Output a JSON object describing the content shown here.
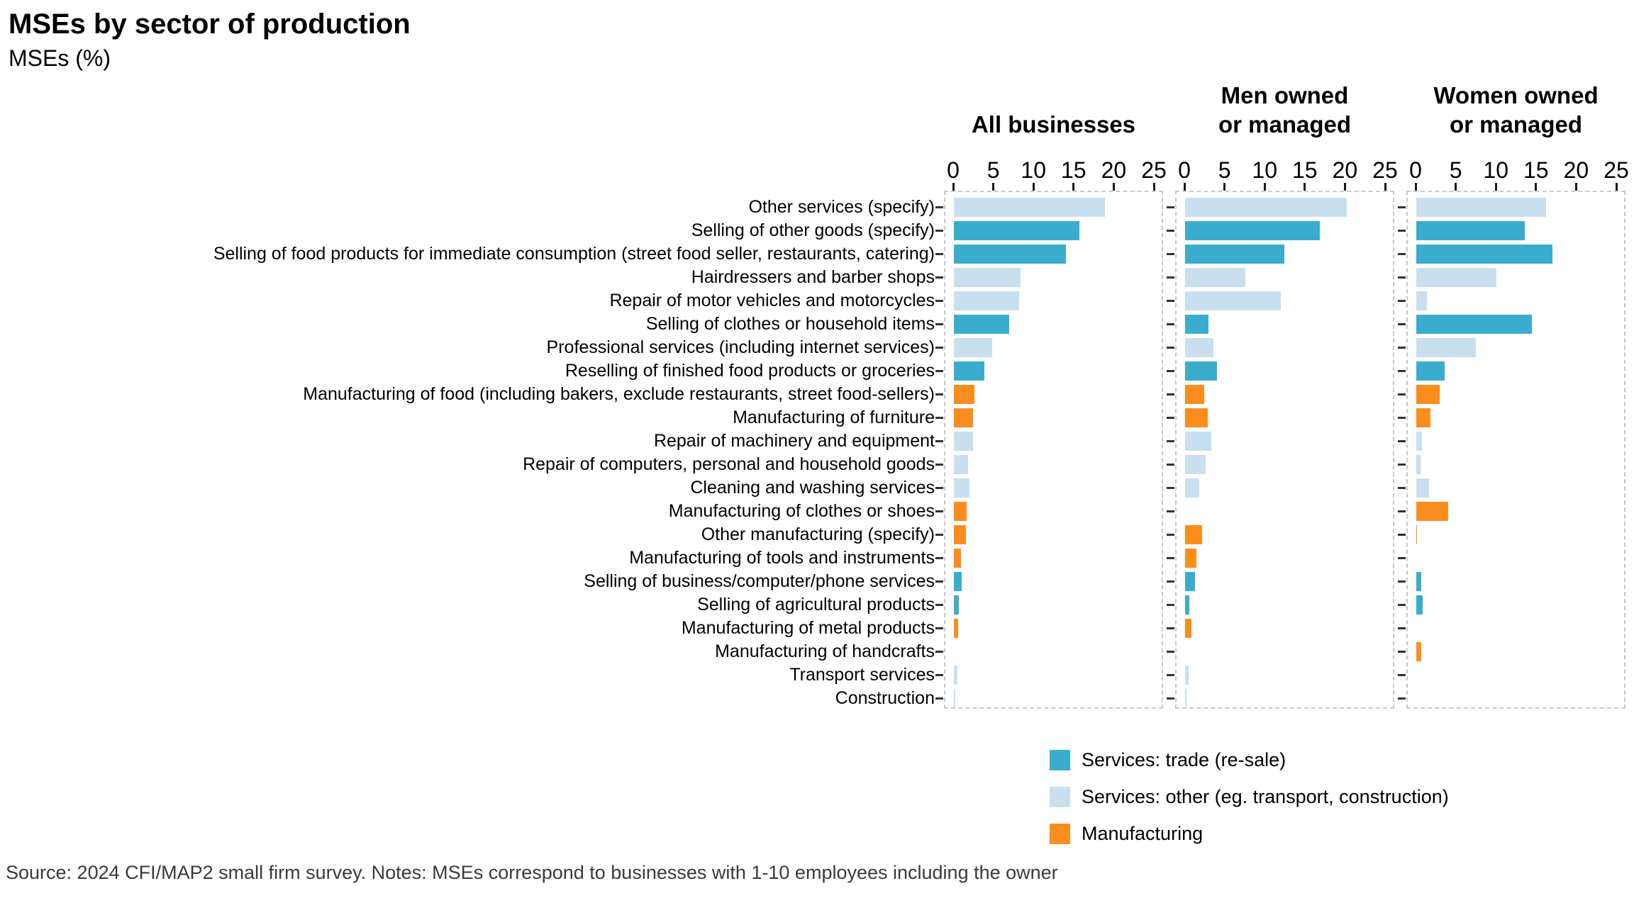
{
  "title": "MSEs by sector of production",
  "subtitle": "MSEs (%)",
  "footer": "Source: 2024 CFI/MAP2 small firm survey. Notes: MSEs correspond to businesses with 1-10 employees including the owner",
  "colors": {
    "trade": "#3AADCE",
    "other": "#C8DFF0",
    "manufacturing": "#FB8D1E",
    "panel_border": "#C9C9C9",
    "axis_text": "#1A1A1A",
    "footer_text": "#3A3A3A"
  },
  "legend": [
    {
      "key": "trade",
      "label": "Services: trade (re-sale)"
    },
    {
      "key": "other",
      "label": "Services: other (eg. transport, construction)"
    },
    {
      "key": "manufacturing",
      "label": "Manufacturing"
    }
  ],
  "chart_data": {
    "type": "bar",
    "orientation": "horizontal",
    "grid": "off",
    "legend_position": "bottom-right",
    "facets": [
      "All businesses",
      "Men owned\nor managed",
      "Women owned\nor managed"
    ],
    "x_ticks": [
      0,
      5,
      10,
      15,
      20,
      25
    ],
    "xlim": [
      0,
      26
    ],
    "xlabel": "",
    "ylabel": "",
    "categories": [
      "Other services (specify)",
      "Selling of other goods (specify)",
      "Selling of food products for immediate consumption (street food seller, restaurants, catering)",
      "Hairdressers and barber shops",
      "Repair of motor vehicles and motorcycles",
      "Selling of clothes or household items",
      "Professional services (including internet services)",
      "Reselling of finished food products or groceries",
      "Manufacturing of food (including bakers, exclude restaurants, street food-sellers)",
      "Manufacturing of furniture",
      "Repair of machinery and equipment",
      "Repair of computers, personal and household goods",
      "Cleaning and washing services",
      "Manufacturing of clothes or shoes",
      "Other manufacturing (specify)",
      "Manufacturing of tools and instruments",
      "Selling of business/computer/phone services",
      "Selling of agricultural products",
      "Manufacturing of metal products",
      "Manufacturing of handcrafts",
      "Transport services",
      "Construction"
    ],
    "category_sector": [
      "other",
      "trade",
      "trade",
      "other",
      "other",
      "trade",
      "other",
      "trade",
      "manufacturing",
      "manufacturing",
      "other",
      "other",
      "other",
      "manufacturing",
      "manufacturing",
      "manufacturing",
      "trade",
      "trade",
      "manufacturing",
      "manufacturing",
      "other",
      "other"
    ],
    "series": [
      {
        "name": "All businesses",
        "values": [
          18.8,
          15.6,
          14.0,
          8.3,
          8.1,
          6.9,
          4.8,
          3.8,
          2.6,
          2.4,
          2.4,
          1.8,
          1.9,
          1.6,
          1.5,
          0.9,
          1.0,
          0.6,
          0.5,
          0,
          0.4,
          0.2
        ]
      },
      {
        "name": "Men owned or managed",
        "values": [
          20.1,
          16.8,
          12.4,
          7.5,
          11.9,
          2.9,
          3.5,
          4.0,
          2.4,
          2.8,
          3.3,
          2.6,
          1.8,
          0,
          2.1,
          1.4,
          1.2,
          0.5,
          0.8,
          0,
          0.4,
          0.2
        ]
      },
      {
        "name": "Women owned or managed",
        "values": [
          16.2,
          13.5,
          17.0,
          10.0,
          1.3,
          14.4,
          7.4,
          3.5,
          2.9,
          1.8,
          0.7,
          0.5,
          1.6,
          4.0,
          0.1,
          0,
          0.6,
          0.8,
          0,
          0.6,
          0,
          0
        ]
      }
    ]
  }
}
